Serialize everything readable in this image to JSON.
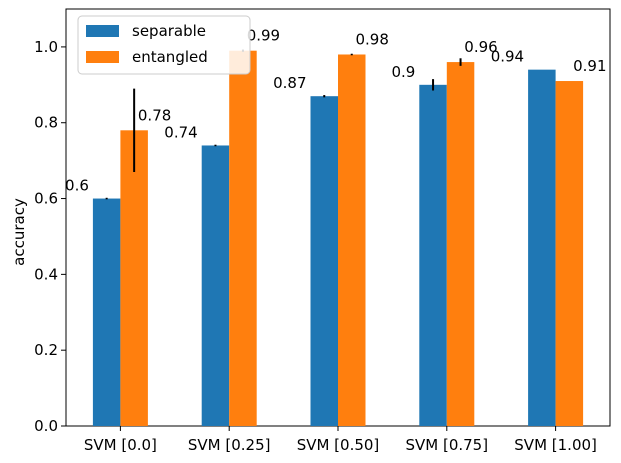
{
  "chart_data": {
    "type": "bar",
    "title": "",
    "xlabel": "",
    "ylabel": "accuracy",
    "ylim": [
      0,
      1.1
    ],
    "yticks": [
      0.0,
      0.2,
      0.4,
      0.6,
      0.8,
      1.0
    ],
    "ytick_labels": [
      "0.0",
      "0.2",
      "0.4",
      "0.6",
      "0.8",
      "1.0"
    ],
    "categories": [
      "SVM [0.0]",
      "SVM [0.25]",
      "SVM [0.50]",
      "SVM [0.75]",
      "SVM [1.00]"
    ],
    "legend_position": "top-left",
    "grid": false,
    "series": [
      {
        "name": "separable",
        "color": "#1f77b4",
        "values": [
          0.6,
          0.74,
          0.87,
          0.9,
          0.94
        ],
        "errors": [
          0.002,
          0.002,
          0.003,
          0.015,
          0.0
        ],
        "labels": [
          "0.6",
          "0.74",
          "0.87",
          "0.9",
          "0.94"
        ]
      },
      {
        "name": "entangled",
        "color": "#ff7f0e",
        "values": [
          0.78,
          0.99,
          0.98,
          0.96,
          0.91
        ],
        "errors": [
          0.11,
          0.003,
          0.002,
          0.01,
          0.0
        ],
        "labels": [
          "0.78",
          "0.99",
          "0.98",
          "0.96",
          "0.91"
        ]
      }
    ]
  }
}
